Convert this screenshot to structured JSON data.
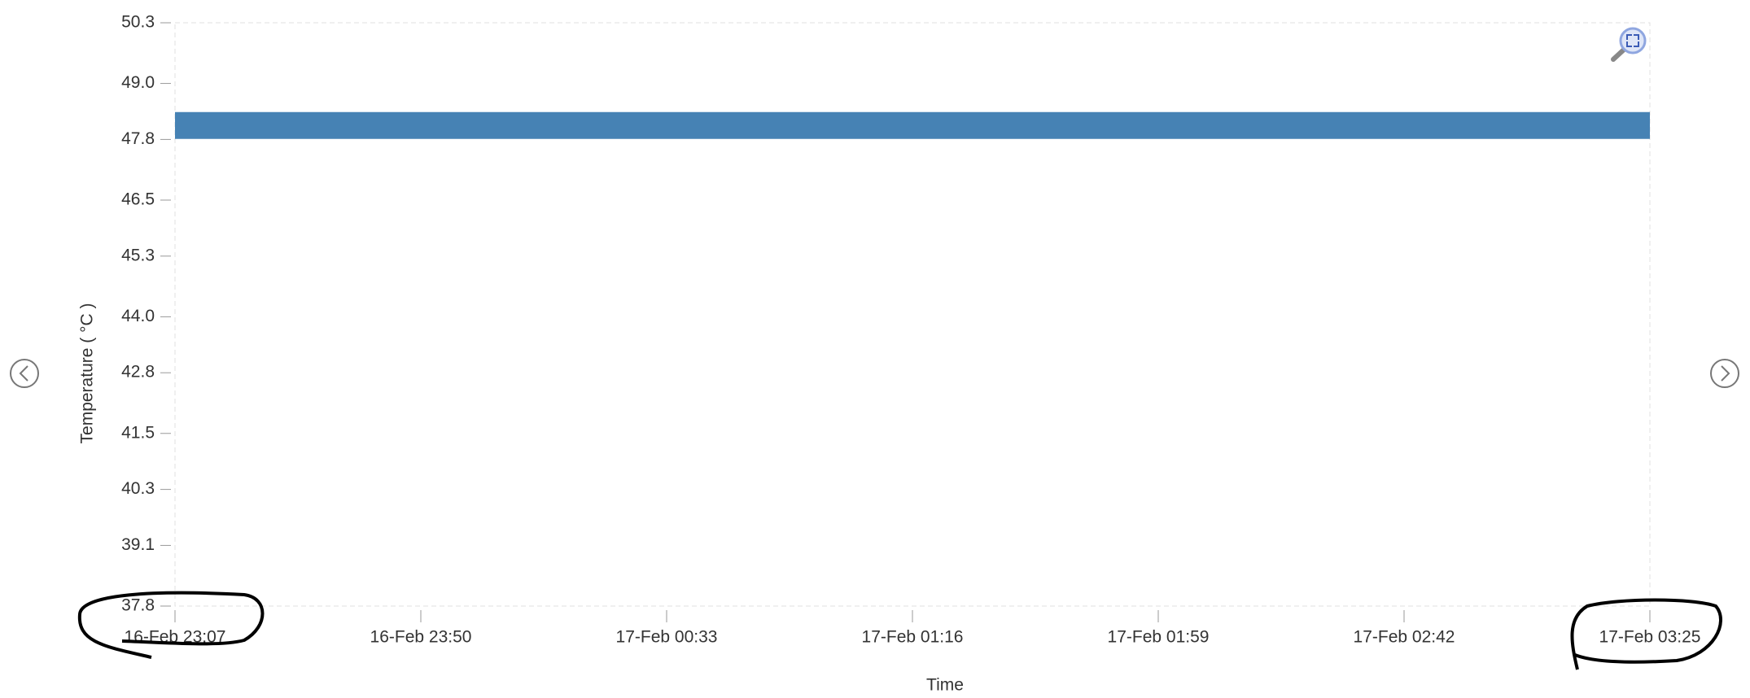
{
  "chart_data": {
    "type": "line",
    "x_label": "Time",
    "y_label": "Temperature ( °C )",
    "categories": [
      "16-Feb 23:07",
      "16-Feb 23:50",
      "17-Feb 00:33",
      "17-Feb 01:16",
      "17-Feb 01:59",
      "17-Feb 02:42",
      "17-Feb 03:25"
    ],
    "series": [
      {
        "color": "#4682b4",
        "values": [
          48.1,
          48.1,
          48.1,
          48.1,
          48.1,
          48.1,
          48.1
        ]
      }
    ],
    "ylim": [
      37.8,
      50.3
    ],
    "yticks": [
      37.8,
      39.1,
      40.3,
      41.5,
      42.8,
      {
        "value": 44,
        "label": "44.0"
      },
      45.3,
      46.5,
      47.8,
      {
        "value": 49,
        "label": "49.0"
      },
      50.3
    ]
  }
}
